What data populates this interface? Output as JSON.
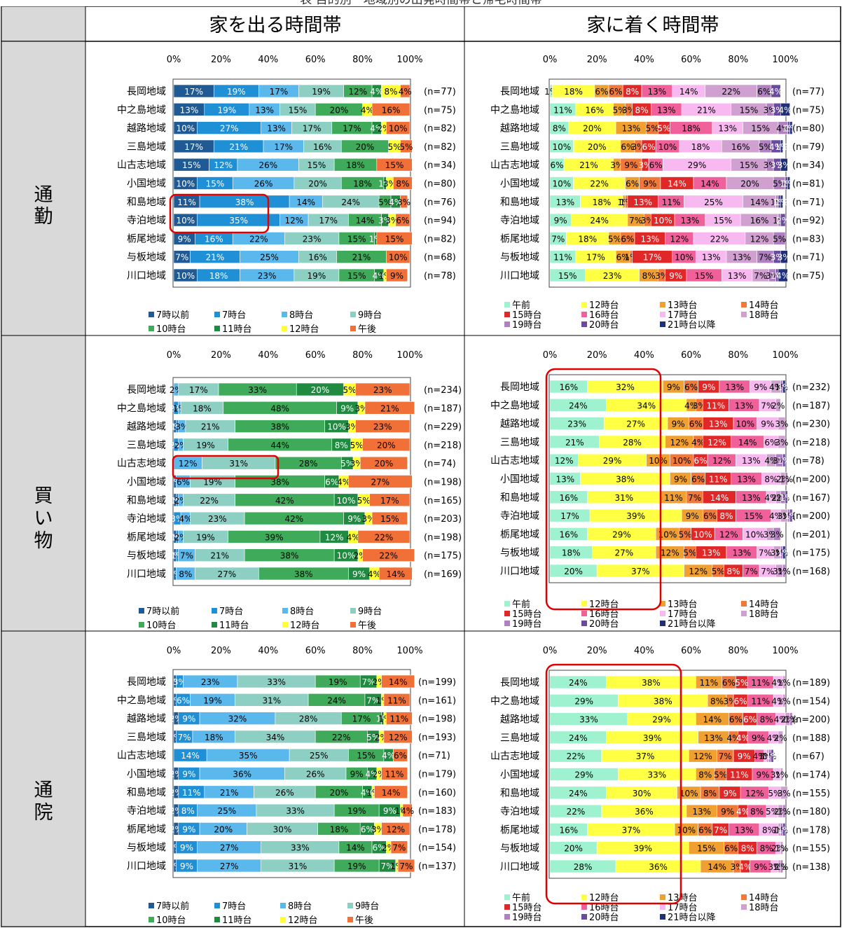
{
  "caption": "表 目的別・地域別の出発時間帯と帰宅時間帯",
  "headers": {
    "depart": "家を出る時間帯",
    "return": "家に着く時間帯"
  },
  "ticks": [
    "0%",
    "20%",
    "40%",
    "60%",
    "80%",
    "100%"
  ],
  "legend_depart": {
    "labels": [
      "7時以前",
      "7時台",
      "8時台",
      "9時台",
      "10時台",
      "11時台",
      "12時台",
      "午後"
    ],
    "colors": [
      "#1f5a94",
      "#1f8fd6",
      "#5bb8ec",
      "#8ecfc3",
      "#3faa5a",
      "#1f8a40",
      "#ffff33",
      "#f07038"
    ]
  },
  "legend_return": {
    "labels": [
      "午前",
      "12時台",
      "13時台",
      "14時台",
      "15時台",
      "16時台",
      "17時台",
      "18時台",
      "19時台",
      "20時台",
      "21時台以降"
    ],
    "colors": [
      "#9ef2cf",
      "#ffff44",
      "#f0a030",
      "#f07838",
      "#e02828",
      "#f0609a",
      "#f8b8f0",
      "#d0a0d0",
      "#b080c0",
      "#6a4aa0",
      "#1f2f78"
    ]
  },
  "chart_data": [
    {
      "type": "bar",
      "section": "通勤",
      "panel": "家を出る時間帯",
      "categories": [
        "長岡地域",
        "中之島地域",
        "越路地域",
        "三島地域",
        "山古志地域",
        "小国地域",
        "和島地域",
        "寺泊地域",
        "栃尾地域",
        "与板地域",
        "川口地域"
      ],
      "n_labels": [
        "(n=77)",
        "(n=75)",
        "(n=82)",
        "(n=82)",
        "(n=34)",
        "(n=80)",
        "(n=76)",
        "(n=94)",
        "(n=82)",
        "(n=68)",
        "(n=78)"
      ],
      "series": [
        {
          "name": "7時以前",
          "values": [
            17,
            13,
            10,
            17,
            15,
            10,
            11,
            10,
            9,
            7,
            10
          ]
        },
        {
          "name": "7時台",
          "values": [
            19,
            19,
            27,
            21,
            12,
            15,
            38,
            35,
            16,
            21,
            18
          ]
        },
        {
          "name": "8時台",
          "values": [
            17,
            13,
            13,
            17,
            26,
            26,
            14,
            12,
            22,
            25,
            23
          ]
        },
        {
          "name": "9時台",
          "values": [
            19,
            15,
            17,
            16,
            15,
            20,
            24,
            17,
            23,
            16,
            19
          ]
        },
        {
          "name": "10時台",
          "values": [
            12,
            20,
            17,
            20,
            18,
            18,
            5,
            14,
            15,
            21,
            15
          ]
        },
        {
          "name": "11時台",
          "values": [
            4,
            0,
            4,
            0,
            0,
            1,
            4,
            3,
            1,
            0,
            4
          ]
        },
        {
          "name": "12時台",
          "values": [
            8,
            4,
            2,
            5,
            0,
            3,
            0,
            3,
            0,
            0,
            1
          ]
        },
        {
          "name": "午後",
          "values": [
            4,
            16,
            10,
            5,
            15,
            8,
            3,
            6,
            15,
            10,
            9
          ]
        }
      ],
      "ylim": [
        0,
        100
      ]
    },
    {
      "type": "bar",
      "section": "通勤",
      "panel": "家に着く時間帯",
      "categories": [
        "長岡地域",
        "中之島地域",
        "越路地域",
        "三島地域",
        "山古志地域",
        "小国地域",
        "和島地域",
        "寺泊地域",
        "栃尾地域",
        "与板地域",
        "川口地域"
      ],
      "n_labels": [
        "(n=77)",
        "(n=75)",
        "(n=80)",
        "(n=79)",
        "(n=34)",
        "(n=81)",
        "(n=71)",
        "(n=92)",
        "(n=83)",
        "(n=71)",
        "(n=75)"
      ],
      "series": [
        {
          "name": "午前",
          "values": [
            1,
            11,
            8,
            10,
            6,
            10,
            13,
            9,
            7,
            11,
            15
          ]
        },
        {
          "name": "12時台",
          "values": [
            18,
            16,
            20,
            20,
            21,
            22,
            18,
            24,
            18,
            17,
            23
          ]
        },
        {
          "name": "13時台",
          "values": [
            6,
            5,
            13,
            6,
            3,
            6,
            1,
            7,
            5,
            6,
            8
          ]
        },
        {
          "name": "14時台",
          "values": [
            6,
            3,
            5,
            3,
            9,
            9,
            1,
            3,
            6,
            1,
            3
          ]
        },
        {
          "name": "15時台",
          "values": [
            8,
            8,
            5,
            6,
            3,
            14,
            13,
            10,
            13,
            17,
            9
          ]
        },
        {
          "name": "16時台",
          "values": [
            13,
            13,
            18,
            10,
            6,
            14,
            11,
            13,
            12,
            10,
            15
          ]
        },
        {
          "name": "17時台",
          "values": [
            14,
            21,
            13,
            18,
            29,
            0,
            25,
            15,
            22,
            13,
            13
          ]
        },
        {
          "name": "18時台",
          "values": [
            22,
            15,
            15,
            16,
            15,
            20,
            14,
            16,
            12,
            13,
            7
          ]
        },
        {
          "name": "19時台",
          "values": [
            6,
            3,
            4,
            5,
            3,
            5,
            1,
            1,
            5,
            7,
            3
          ]
        },
        {
          "name": "20時台",
          "values": [
            4,
            3,
            1,
            4,
            3,
            1,
            1,
            2,
            0,
            3,
            1
          ]
        },
        {
          "name": "21時台以降",
          "values": [
            0,
            4,
            1,
            1,
            3,
            1,
            1,
            0,
            0,
            3,
            4
          ]
        }
      ],
      "ylim": [
        0,
        100
      ]
    },
    {
      "type": "bar",
      "section": "買い物",
      "panel": "家を出る時間帯",
      "categories": [
        "長岡地域",
        "中之島地域",
        "越路地域",
        "三島地域",
        "山古志地域",
        "小国地域",
        "和島地域",
        "寺泊地域",
        "栃尾地域",
        "与板地域",
        "川口地域"
      ],
      "n_labels": [
        "(n=234)",
        "(n=187)",
        "(n=229)",
        "(n=218)",
        "(n=74)",
        "(n=198)",
        "(n=165)",
        "(n=203)",
        "(n=198)",
        "(n=175)",
        "(n=169)"
      ],
      "series": [
        {
          "name": "7時以前",
          "values": [
            0,
            0,
            1,
            0,
            0,
            1,
            1,
            0,
            1,
            1,
            1
          ]
        },
        {
          "name": "7時台",
          "values": [
            0,
            2,
            1,
            2,
            0,
            0,
            1,
            3,
            1,
            1,
            0
          ]
        },
        {
          "name": "8時台",
          "values": [
            2,
            1,
            3,
            2,
            12,
            6,
            2,
            4,
            2,
            7,
            8
          ]
        },
        {
          "name": "9時台",
          "values": [
            17,
            18,
            21,
            19,
            31,
            19,
            22,
            23,
            19,
            21,
            27
          ]
        },
        {
          "name": "10時台",
          "values": [
            33,
            48,
            38,
            44,
            28,
            38,
            42,
            42,
            39,
            38,
            38
          ]
        },
        {
          "name": "11時台",
          "values": [
            20,
            9,
            10,
            8,
            5,
            6,
            10,
            9,
            12,
            10,
            9
          ]
        },
        {
          "name": "12時台",
          "values": [
            5,
            3,
            3,
            5,
            3,
            4,
            5,
            3,
            4,
            2,
            4
          ]
        },
        {
          "name": "午後",
          "values": [
            23,
            21,
            23,
            20,
            20,
            27,
            17,
            15,
            22,
            22,
            14
          ]
        }
      ],
      "ylim": [
        0,
        100
      ]
    },
    {
      "type": "bar",
      "section": "買い物",
      "panel": "家に着く時間帯",
      "categories": [
        "長岡地域",
        "中之島地域",
        "越路地域",
        "三島地域",
        "山古志地域",
        "小国地域",
        "和島地域",
        "寺泊地域",
        "栃尾地域",
        "与板地域",
        "川口地域"
      ],
      "n_labels": [
        "(n=232)",
        "(n=187)",
        "(n=230)",
        "(n=218)",
        "(n=78)",
        "(n=200)",
        "(n=167)",
        "(n=200)",
        "(n=201)",
        "(n=175)",
        "(n=168)"
      ],
      "series": [
        {
          "name": "午前",
          "values": [
            16,
            24,
            23,
            21,
            12,
            13,
            16,
            17,
            16,
            18,
            20
          ]
        },
        {
          "name": "12時台",
          "values": [
            32,
            34,
            27,
            28,
            29,
            38,
            31,
            39,
            29,
            27,
            37
          ]
        },
        {
          "name": "13時台",
          "values": [
            9,
            4,
            9,
            12,
            10,
            9,
            11,
            9,
            10,
            12,
            12
          ]
        },
        {
          "name": "14時台",
          "values": [
            6,
            3,
            6,
            4,
            10,
            6,
            7,
            6,
            5,
            5,
            5
          ]
        },
        {
          "name": "15時台",
          "values": [
            9,
            11,
            13,
            12,
            6,
            11,
            14,
            8,
            10,
            13,
            8
          ]
        },
        {
          "name": "16時台",
          "values": [
            13,
            13,
            10,
            14,
            12,
            13,
            13,
            15,
            12,
            13,
            7
          ]
        },
        {
          "name": "17時台",
          "values": [
            9,
            7,
            9,
            6,
            13,
            8,
            4,
            4,
            10,
            7,
            7
          ]
        },
        {
          "name": "18時台",
          "values": [
            4,
            2,
            3,
            3,
            4,
            2,
            2,
            3,
            3,
            3,
            3
          ]
        },
        {
          "name": "19時台",
          "values": [
            1,
            0,
            0,
            0,
            3,
            1,
            2,
            1,
            3,
            1,
            1
          ]
        },
        {
          "name": "20時台",
          "values": [
            0,
            0,
            0,
            0,
            1,
            0,
            1,
            1,
            0,
            0,
            0
          ]
        },
        {
          "name": "21時台以降",
          "values": [
            1,
            0,
            0,
            0,
            0,
            0,
            0,
            0,
            0,
            1,
            0
          ]
        }
      ],
      "ylim": [
        0,
        100
      ]
    },
    {
      "type": "bar",
      "section": "通院",
      "panel": "家を出る時間帯",
      "categories": [
        "長岡地域",
        "中之島地域",
        "越路地域",
        "三島地域",
        "山古志地域",
        "小国地域",
        "和島地域",
        "寺泊地域",
        "栃尾地域",
        "与板地域",
        "川口地域"
      ],
      "n_labels": [
        "(n=199)",
        "(n=161)",
        "(n=198)",
        "(n=193)",
        "(n=71)",
        "(n=179)",
        "(n=160)",
        "(n=183)",
        "(n=178)",
        "(n=154)",
        "(n=137)"
      ],
      "series": [
        {
          "name": "7時以前",
          "values": [
            1,
            1,
            2,
            1,
            0,
            2,
            2,
            2,
            2,
            1,
            1
          ]
        },
        {
          "name": "7時台",
          "values": [
            3,
            6,
            9,
            7,
            14,
            9,
            11,
            8,
            9,
            9,
            9
          ]
        },
        {
          "name": "8時台",
          "values": [
            23,
            19,
            32,
            18,
            35,
            36,
            21,
            25,
            20,
            27,
            27
          ]
        },
        {
          "name": "9時台",
          "values": [
            33,
            31,
            28,
            34,
            25,
            26,
            26,
            33,
            30,
            33,
            31
          ]
        },
        {
          "name": "10時台",
          "values": [
            19,
            24,
            17,
            22,
            15,
            9,
            20,
            19,
            18,
            14,
            19
          ]
        },
        {
          "name": "11時台",
          "values": [
            7,
            7,
            1,
            5,
            4,
            4,
            4,
            9,
            6,
            6,
            7
          ]
        },
        {
          "name": "12時台",
          "values": [
            2,
            1,
            1,
            2,
            0,
            2,
            1,
            1,
            3,
            2,
            1
          ]
        },
        {
          "name": "午後",
          "values": [
            14,
            11,
            11,
            12,
            6,
            11,
            14,
            4,
            12,
            7,
            7
          ]
        }
      ],
      "ylim": [
        0,
        100
      ]
    },
    {
      "type": "bar",
      "section": "通院",
      "panel": "家に着く時間帯",
      "categories": [
        "長岡地域",
        "中之島地域",
        "越路地域",
        "三島地域",
        "山古志地域",
        "小国地域",
        "和島地域",
        "寺泊地域",
        "栃尾地域",
        "与板地域",
        "川口地域"
      ],
      "n_labels": [
        "(n=189)",
        "(n=154)",
        "(n=200)",
        "(n=188)",
        "(n=67)",
        "(n=174)",
        "(n=155)",
        "(n=180)",
        "(n=178)",
        "(n=155)",
        "(n=138)"
      ],
      "series": [
        {
          "name": "午前",
          "values": [
            24,
            29,
            33,
            24,
            22,
            29,
            24,
            22,
            16,
            20,
            28
          ]
        },
        {
          "name": "12時台",
          "values": [
            38,
            38,
            29,
            39,
            37,
            33,
            30,
            36,
            37,
            39,
            36
          ]
        },
        {
          "name": "13時台",
          "values": [
            11,
            8,
            14,
            13,
            12,
            8,
            10,
            13,
            10,
            15,
            14
          ]
        },
        {
          "name": "14時台",
          "values": [
            6,
            3,
            6,
            4,
            7,
            5,
            8,
            9,
            6,
            6,
            3
          ]
        },
        {
          "name": "15時台",
          "values": [
            5,
            6,
            6,
            4,
            9,
            11,
            9,
            4,
            7,
            8,
            4
          ]
        },
        {
          "name": "16時台",
          "values": [
            11,
            11,
            8,
            9,
            4,
            9,
            12,
            8,
            13,
            8,
            9
          ]
        },
        {
          "name": "17時台",
          "values": [
            4,
            4,
            4,
            4,
            1,
            3,
            5,
            5,
            8,
            2,
            3
          ]
        },
        {
          "name": "18時台",
          "values": [
            1,
            1,
            2,
            2,
            1,
            1,
            3,
            2,
            1,
            1,
            1
          ]
        },
        {
          "name": "19時台",
          "values": [
            0,
            0,
            1,
            0,
            1,
            0,
            0,
            1,
            1,
            0,
            1
          ]
        },
        {
          "name": "20時台",
          "values": [
            0,
            0,
            0,
            0,
            1,
            0,
            0,
            0,
            1,
            0,
            0
          ]
        },
        {
          "name": "21時台以降",
          "values": [
            0,
            0,
            0,
            0,
            0,
            0,
            0,
            0,
            0,
            0,
            0
          ]
        }
      ],
      "ylim": [
        0,
        100
      ]
    }
  ],
  "sections": [
    "通勤",
    "買い物",
    "通院"
  ]
}
